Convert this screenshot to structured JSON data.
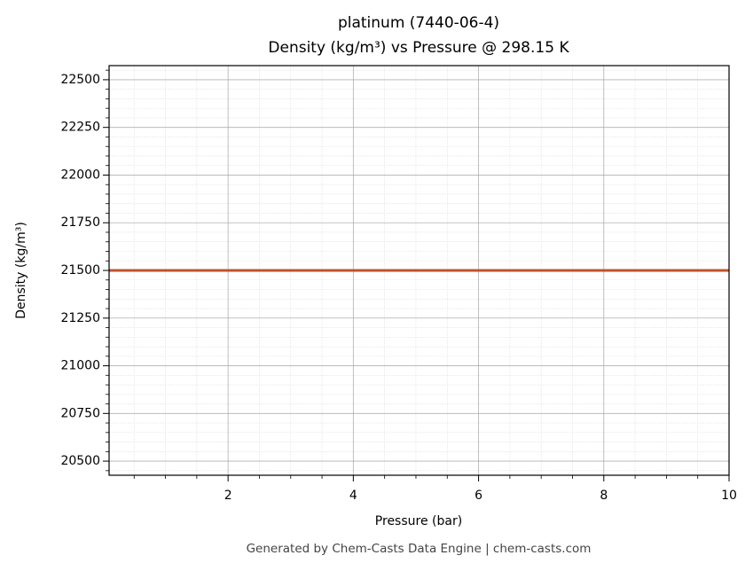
{
  "chart_data": {
    "type": "line",
    "title": "platinum (7440-06-4)",
    "subtitle": "Density (kg/m³) vs Pressure @ 298.15 K",
    "xlabel": "Pressure (bar)",
    "ylabel": "Density (kg/m³)",
    "footer": "Generated by Chem-Casts Data Engine | chem-casts.com",
    "x": [
      0.1,
      10
    ],
    "series": [
      {
        "name": "platinum",
        "color": "#c0522a",
        "values": [
          21500,
          21500
        ]
      }
    ],
    "xlim": [
      0.1,
      10
    ],
    "ylim": [
      20426,
      22574
    ],
    "xticks": [
      2,
      4,
      6,
      8,
      10
    ],
    "yticks": [
      20500,
      20750,
      21000,
      21250,
      21500,
      21750,
      22000,
      22250,
      22500
    ],
    "xminorticks": [
      0.5,
      1,
      1.5,
      2.5,
      3,
      3.5,
      4.5,
      5,
      5.5,
      6.5,
      7,
      7.5,
      8.5,
      9,
      9.5
    ],
    "yminorticks": [
      20450,
      20550,
      20600,
      20650,
      20700,
      20800,
      20850,
      20900,
      20950,
      21050,
      21100,
      21150,
      21200,
      21300,
      21350,
      21400,
      21450,
      21550,
      21600,
      21650,
      21700,
      21800,
      21850,
      21900,
      21950,
      22050,
      22100,
      22150,
      22200,
      22300,
      22350,
      22400,
      22450,
      22550
    ],
    "grid": true
  }
}
